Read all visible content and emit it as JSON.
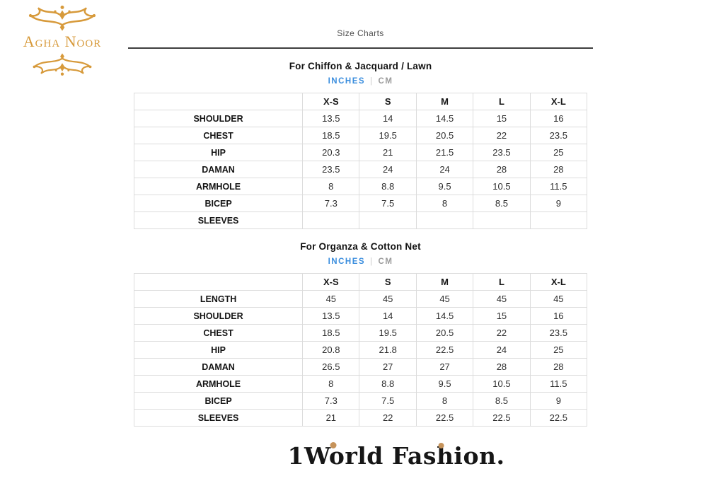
{
  "page": {
    "title": "Size Charts"
  },
  "brand": {
    "name": "Agha Noor"
  },
  "units": {
    "primary": "INCHES",
    "separator": "|",
    "secondary": "CM"
  },
  "colors": {
    "brand_gold": "#d79a3b",
    "accent_blue": "#3b8ede",
    "inactive_gray": "#9b9b9b",
    "table_border": "#dcdcdc",
    "footer_dot_gold": "#c6935a"
  },
  "tables": [
    {
      "title": "For Chiffon & Jacquard / Lawn",
      "sizes": [
        "X-S",
        "S",
        "M",
        "L",
        "X-L"
      ],
      "rows": [
        {
          "label": "SHOULDER",
          "values": [
            "13.5",
            "14",
            "14.5",
            "15",
            "16"
          ]
        },
        {
          "label": "CHEST",
          "values": [
            "18.5",
            "19.5",
            "20.5",
            "22",
            "23.5"
          ]
        },
        {
          "label": "HIP",
          "values": [
            "20.3",
            "21",
            "21.5",
            "23.5",
            "25"
          ]
        },
        {
          "label": "DAMAN",
          "values": [
            "23.5",
            "24",
            "24",
            "28",
            "28"
          ]
        },
        {
          "label": "ARMHOLE",
          "values": [
            "8",
            "8.8",
            "9.5",
            "10.5",
            "11.5"
          ]
        },
        {
          "label": "BICEP",
          "values": [
            "7.3",
            "7.5",
            "8",
            "8.5",
            "9"
          ]
        },
        {
          "label": "SLEEVES",
          "values": [
            "",
            "",
            "",
            "",
            ""
          ]
        }
      ]
    },
    {
      "title": "For Organza & Cotton Net",
      "sizes": [
        "X-S",
        "S",
        "M",
        "L",
        "X-L"
      ],
      "rows": [
        {
          "label": "LENGTH",
          "values": [
            "45",
            "45",
            "45",
            "45",
            "45"
          ]
        },
        {
          "label": "SHOULDER",
          "values": [
            "13.5",
            "14",
            "14.5",
            "15",
            "16"
          ]
        },
        {
          "label": "CHEST",
          "values": [
            "18.5",
            "19.5",
            "20.5",
            "22",
            "23.5"
          ]
        },
        {
          "label": "HIP",
          "values": [
            "20.8",
            "21.8",
            "22.5",
            "24",
            "25"
          ]
        },
        {
          "label": "DAMAN",
          "values": [
            "26.5",
            "27",
            "27",
            "28",
            "28"
          ]
        },
        {
          "label": "ARMHOLE",
          "values": [
            "8",
            "8.8",
            "9.5",
            "10.5",
            "11.5"
          ]
        },
        {
          "label": "BICEP",
          "values": [
            "7.3",
            "7.5",
            "8",
            "8.5",
            "9"
          ]
        },
        {
          "label": "SLEEVES",
          "values": [
            "21",
            "22",
            "22.5",
            "22.5",
            "22.5"
          ]
        }
      ]
    }
  ],
  "footer": {
    "logo_text": "1World Fashion."
  }
}
